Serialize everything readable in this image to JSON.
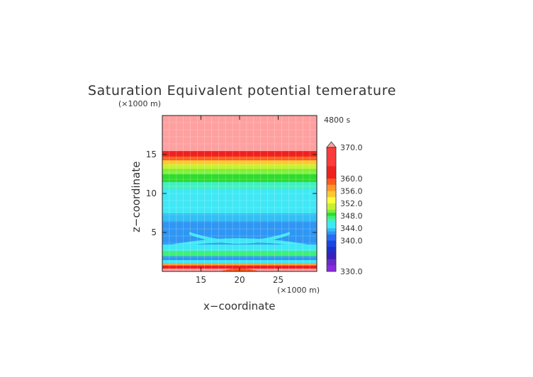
{
  "chart_data": {
    "type": "heatmap",
    "title": "Saturation Equivalent potential temerature",
    "time_label": "4800 s",
    "xlabel": "x−coordinate",
    "ylabel": "z−coordinate",
    "x_unit": "(×1000 m)",
    "y_unit": "(×1000 m)",
    "xlim": [
      10,
      30
    ],
    "ylim": [
      0,
      20
    ],
    "x_ticks": [
      "15",
      "20",
      "25"
    ],
    "y_ticks": [
      "5",
      "10",
      "15"
    ],
    "x_tick_values": [
      15,
      20,
      25
    ],
    "y_tick_values": [
      5,
      10,
      15
    ],
    "colorbar": {
      "min": 330,
      "max": 370,
      "extend": "max",
      "tick_labels": [
        "370.0",
        "360.0",
        "356.0",
        "352.0",
        "348.0",
        "344.0",
        "340.0",
        "330.0"
      ],
      "tick_values": [
        370,
        360,
        356,
        352,
        348,
        344,
        340,
        330
      ],
      "levels": [
        {
          "lo": 330,
          "hi": 332,
          "color": "#8a2be2"
        },
        {
          "lo": 332,
          "hi": 334,
          "color": "#6a2cc8"
        },
        {
          "lo": 334,
          "hi": 336,
          "color": "#3b1fb8"
        },
        {
          "lo": 336,
          "hi": 338,
          "color": "#1f2fc8"
        },
        {
          "lo": 338,
          "hi": 340,
          "color": "#1a46e0"
        },
        {
          "lo": 340,
          "hi": 342,
          "color": "#2a6cf0"
        },
        {
          "lo": 342,
          "hi": 343,
          "color": "#2f96f4"
        },
        {
          "lo": 343,
          "hi": 344,
          "color": "#33bff6"
        },
        {
          "lo": 344,
          "hi": 346,
          "color": "#40e8f5"
        },
        {
          "lo": 346,
          "hi": 347,
          "color": "#40f0c4"
        },
        {
          "lo": 347,
          "hi": 348,
          "color": "#3ef07a"
        },
        {
          "lo": 348,
          "hi": 349,
          "color": "#2edb2e"
        },
        {
          "lo": 349,
          "hi": 350,
          "color": "#7cf03c"
        },
        {
          "lo": 350,
          "hi": 352,
          "color": "#c8f032"
        },
        {
          "lo": 352,
          "hi": 354,
          "color": "#ffff3c"
        },
        {
          "lo": 354,
          "hi": 356,
          "color": "#ffc832"
        },
        {
          "lo": 356,
          "hi": 358,
          "color": "#ff9628"
        },
        {
          "lo": 358,
          "hi": 360,
          "color": "#ff5a1e"
        },
        {
          "lo": 360,
          "hi": 364,
          "color": "#f02020"
        },
        {
          "lo": 364,
          "hi": 370,
          "color": "#ff3a3a"
        },
        {
          "lo": 370,
          "hi": 374,
          "color": "#ffa0a0"
        }
      ]
    },
    "field_profile": [
      {
        "z_lo": 0.0,
        "z_hi": 0.4,
        "value": 372
      },
      {
        "z_lo": 0.4,
        "z_hi": 0.8,
        "value": 362
      },
      {
        "z_lo": 0.8,
        "z_hi": 1.1,
        "value": 356
      },
      {
        "z_lo": 1.1,
        "z_hi": 1.5,
        "value": 344.5
      },
      {
        "z_lo": 1.5,
        "z_hi": 2.0,
        "value": 342.5
      },
      {
        "z_lo": 2.0,
        "z_hi": 2.7,
        "value": 347
      },
      {
        "z_lo": 2.7,
        "z_hi": 3.5,
        "value": 345
      },
      {
        "z_lo": 3.5,
        "z_hi": 6.5,
        "value": 342.5
      },
      {
        "z_lo": 6.5,
        "z_hi": 7.5,
        "value": 343.5
      },
      {
        "z_lo": 7.5,
        "z_hi": 10.5,
        "value": 345
      },
      {
        "z_lo": 10.5,
        "z_hi": 11.5,
        "value": 346.5
      },
      {
        "z_lo": 11.5,
        "z_hi": 12.5,
        "value": 348.5
      },
      {
        "z_lo": 12.5,
        "z_hi": 13.2,
        "value": 349.5
      },
      {
        "z_lo": 13.2,
        "z_hi": 13.8,
        "value": 351
      },
      {
        "z_lo": 13.8,
        "z_hi": 14.3,
        "value": 355
      },
      {
        "z_lo": 14.3,
        "z_hi": 14.8,
        "value": 359
      },
      {
        "z_lo": 14.8,
        "z_hi": 15.5,
        "value": 362
      },
      {
        "z_lo": 15.5,
        "z_hi": 20.0,
        "value": 372
      }
    ],
    "features": [
      {
        "name": "upper-crossing-band",
        "value": 344.5,
        "z_center": 4.8
      },
      {
        "name": "lower-crossing-band",
        "value": 344.5,
        "z_center": 3.4
      },
      {
        "name": "surface-warm-bump",
        "value": 358,
        "x_center": 20,
        "z_top": 0.8
      }
    ]
  }
}
